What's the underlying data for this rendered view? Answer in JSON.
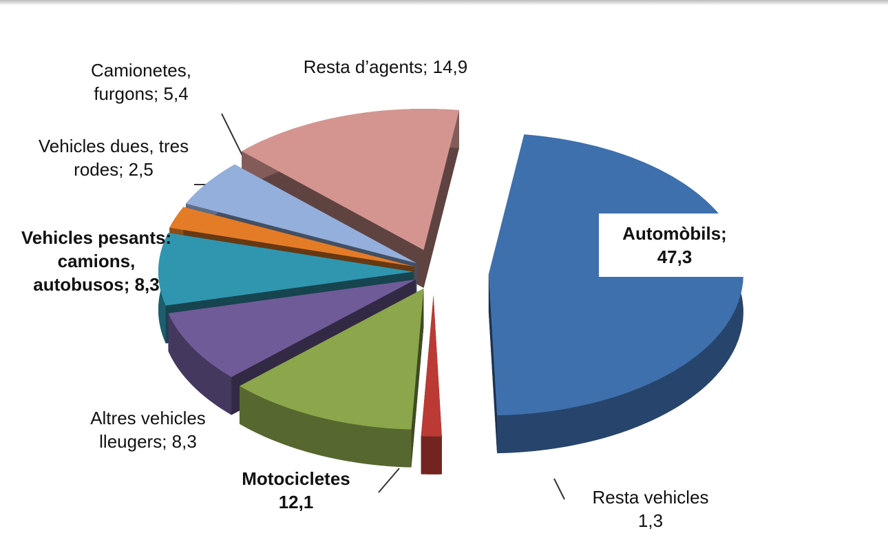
{
  "chart_data": {
    "type": "pie3d",
    "categories": [
      "Automòbils;",
      "Resta vehicles",
      "Motocicletes",
      "Altres vehicles lleugers;",
      "Vehicles pesants: camions, autobusos;",
      "Vehicles dues, tres rodes;",
      "Camionetes, furgons;",
      "Resta d’agents;"
    ],
    "values": [
      47.3,
      1.3,
      12.1,
      8.3,
      8.3,
      2.5,
      5.4,
      14.9
    ],
    "value_labels": [
      "47,3",
      "1,3",
      "12,1",
      "8,3",
      "8,3",
      "2,5",
      "5,4",
      "14,9"
    ],
    "colors": [
      "#3f70ae",
      "#bb3a33",
      "#8ba64b",
      "#6f5b97",
      "#3096af",
      "#e47c27",
      "#94afdc",
      "#d49591"
    ]
  }
}
